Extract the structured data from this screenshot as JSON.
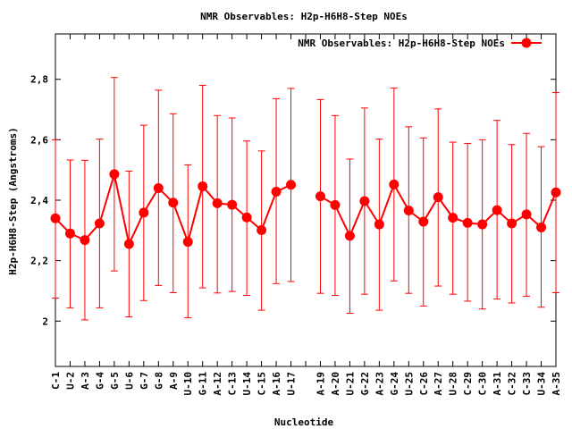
{
  "chart_data": {
    "type": "line",
    "title": "NMR Observables: H2p-H6H8-Step NOEs",
    "xlabel": "Nucleotide",
    "ylabel": "H2p-H6H8-Step (Angstroms)",
    "ylim": [
      1.85,
      2.95
    ],
    "yticks": [
      "2",
      "2,2",
      "2,4",
      "2,6",
      "2,8"
    ],
    "ytick_values": [
      2.0,
      2.2,
      2.4,
      2.6,
      2.8
    ],
    "grid": false,
    "legend_position": "top-right",
    "color": "#ff0000",
    "categories": [
      "C-1",
      "U-2",
      "A-3",
      "G-4",
      "G-5",
      "U-6",
      "G-7",
      "G-8",
      "A-9",
      "U-10",
      "G-11",
      "A-12",
      "C-13",
      "U-14",
      "C-15",
      "A-16",
      "U-17",
      "",
      "A-19",
      "A-20",
      "U-21",
      "G-22",
      "A-23",
      "G-24",
      "U-25",
      "C-26",
      "A-27",
      "U-28",
      "C-29",
      "C-30",
      "A-31",
      "C-32",
      "C-33",
      "U-34",
      "A-35"
    ],
    "series": [
      {
        "name": "NMR Observables: H2p-H6H8-Step NOEs",
        "values": [
          2.34,
          2.29,
          2.268,
          2.323,
          2.486,
          2.255,
          2.359,
          2.44,
          2.392,
          2.262,
          2.446,
          2.39,
          2.385,
          2.343,
          2.301,
          2.428,
          2.451,
          null,
          2.413,
          2.384,
          2.282,
          2.397,
          2.32,
          2.452,
          2.366,
          2.329,
          2.41,
          2.342,
          2.325,
          2.32,
          2.367,
          2.323,
          2.353,
          2.31,
          2.426
        ],
        "err_low": [
          2.076,
          2.044,
          2.004,
          2.044,
          2.166,
          2.014,
          2.068,
          2.118,
          2.094,
          2.011,
          2.11,
          2.093,
          2.098,
          2.085,
          2.036,
          2.124,
          2.131,
          null,
          2.092,
          2.085,
          2.026,
          2.089,
          2.036,
          2.133,
          2.092,
          2.05,
          2.116,
          2.089,
          2.066,
          2.04,
          2.073,
          2.06,
          2.082,
          2.046,
          2.094
        ],
        "err_high": [
          2.6,
          2.533,
          2.532,
          2.602,
          2.806,
          2.496,
          2.648,
          2.764,
          2.686,
          2.517,
          2.78,
          2.68,
          2.672,
          2.596,
          2.563,
          2.736,
          2.77,
          null,
          2.733,
          2.68,
          2.536,
          2.705,
          2.602,
          2.771,
          2.643,
          2.606,
          2.702,
          2.592,
          2.588,
          2.6,
          2.664,
          2.584,
          2.621,
          2.577,
          2.756
        ]
      }
    ]
  }
}
